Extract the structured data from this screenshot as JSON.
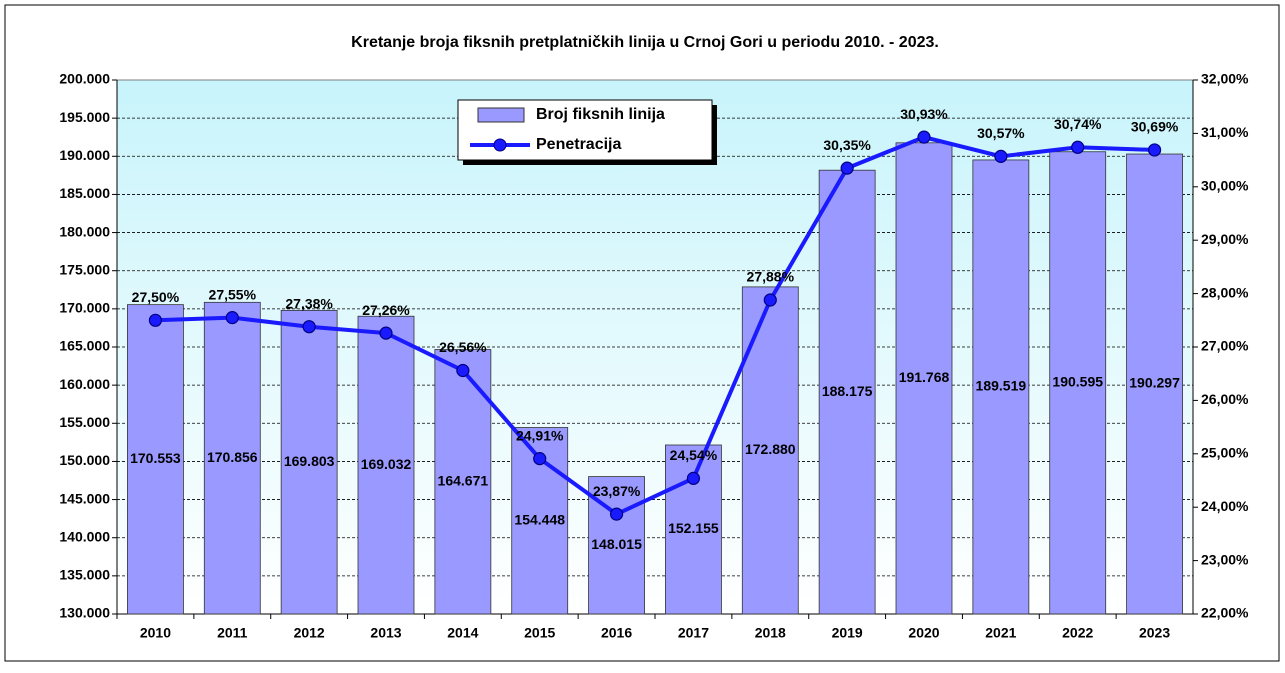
{
  "chart_data": {
    "type": "bar_line",
    "title": "Kretanje broja fiksnih pretplatničkih linija u Crnoj Gori u periodu 2010. - 2023.",
    "categories": [
      "2010",
      "2011",
      "2012",
      "2013",
      "2014",
      "2015",
      "2016",
      "2017",
      "2018",
      "2019",
      "2020",
      "2021",
      "2022",
      "2023"
    ],
    "series": [
      {
        "name": "Broj fiksnih linija",
        "type": "bar",
        "color": "#9999ff",
        "values": [
          170553,
          170856,
          169803,
          169032,
          164671,
          154448,
          148015,
          152155,
          172880,
          188175,
          191768,
          189519,
          190595,
          190297
        ],
        "value_labels": [
          "170.553",
          "170.856",
          "169.803",
          "169.032",
          "164.671",
          "154.448",
          "148.015",
          "152.155",
          "172.880",
          "188.175",
          "191.768",
          "189.519",
          "190.595",
          "190.297"
        ]
      },
      {
        "name": "Penetracija",
        "type": "line",
        "axis": "y2",
        "color": "#1a1aff",
        "values": [
          27.5,
          27.55,
          27.38,
          27.26,
          26.56,
          24.91,
          23.87,
          24.54,
          27.88,
          30.35,
          30.93,
          30.57,
          30.74,
          30.69
        ],
        "value_labels": [
          "27,50%",
          "27,55%",
          "27,38%",
          "27,26%",
          "26,56%",
          "24,91%",
          "23,87%",
          "24,54%",
          "27,88%",
          "30,35%",
          "30,93%",
          "30,57%",
          "30,74%",
          "30,69%"
        ]
      }
    ],
    "ylim": [
      130000,
      200000
    ],
    "yticks": [
      {
        "value": 130000,
        "label": "130.000"
      },
      {
        "value": 135000,
        "label": "135.000"
      },
      {
        "value": 140000,
        "label": "140.000"
      },
      {
        "value": 145000,
        "label": "145.000"
      },
      {
        "value": 150000,
        "label": "150.000"
      },
      {
        "value": 155000,
        "label": "155.000"
      },
      {
        "value": 160000,
        "label": "160.000"
      },
      {
        "value": 165000,
        "label": "165.000"
      },
      {
        "value": 170000,
        "label": "170.000"
      },
      {
        "value": 175000,
        "label": "175.000"
      },
      {
        "value": 180000,
        "label": "180.000"
      },
      {
        "value": 185000,
        "label": "185.000"
      },
      {
        "value": 190000,
        "label": "190.000"
      },
      {
        "value": 195000,
        "label": "195.000"
      },
      {
        "value": 200000,
        "label": "200.000"
      }
    ],
    "y2lim": [
      22,
      32
    ],
    "y2ticks": [
      {
        "value": 22,
        "label": "22,00%"
      },
      {
        "value": 23,
        "label": "23,00%"
      },
      {
        "value": 24,
        "label": "24,00%"
      },
      {
        "value": 25,
        "label": "25,00%"
      },
      {
        "value": 26,
        "label": "26,00%"
      },
      {
        "value": 27,
        "label": "27,00%"
      },
      {
        "value": 28,
        "label": "28,00%"
      },
      {
        "value": 29,
        "label": "29,00%"
      },
      {
        "value": 30,
        "label": "30,00%"
      },
      {
        "value": 31,
        "label": "31,00%"
      },
      {
        "value": 32,
        "label": "32,00%"
      }
    ],
    "grid": true
  }
}
